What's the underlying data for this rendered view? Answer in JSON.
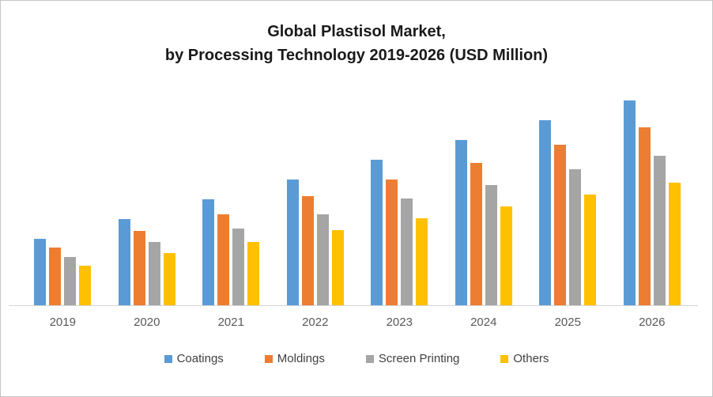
{
  "title": {
    "line1": "Global Plastisol Market,",
    "line2": "by Processing Technology 2019-2026 (USD Million)"
  },
  "chart_data": {
    "type": "bar",
    "title": "Global Plastisol Market, by Processing Technology 2019-2026 (USD Million)",
    "xlabel": "",
    "ylabel": "",
    "categories": [
      "2019",
      "2020",
      "2021",
      "2022",
      "2023",
      "2024",
      "2025",
      "2026"
    ],
    "series": [
      {
        "name": "Coatings",
        "color": "#5B9BD5",
        "values": [
          84,
          109,
          134,
          159,
          184,
          209,
          234,
          259
        ]
      },
      {
        "name": "Moldings",
        "color": "#ED7D31",
        "values": [
          73,
          94,
          115,
          138,
          159,
          180,
          203,
          225
        ]
      },
      {
        "name": "Screen Printing",
        "color": "#A5A5A5",
        "values": [
          61,
          80,
          97,
          115,
          135,
          152,
          172,
          189
        ]
      },
      {
        "name": "Others",
        "color": "#FFC000",
        "values": [
          50,
          66,
          80,
          95,
          110,
          125,
          140,
          155
        ]
      }
    ],
    "value_axis_labels_visible": false,
    "values_are_relative_estimates": true,
    "ylim": [
      0,
      270
    ],
    "grid": false,
    "legend_position": "bottom"
  },
  "theme": {
    "axis_line_color": "#D6D6D6",
    "category_label_color": "#595959",
    "legend_text_color": "#404040",
    "title_color": "#1A1A1A",
    "frame_border_color": "#C6C6C6",
    "background_color": "#FFFFFF"
  }
}
